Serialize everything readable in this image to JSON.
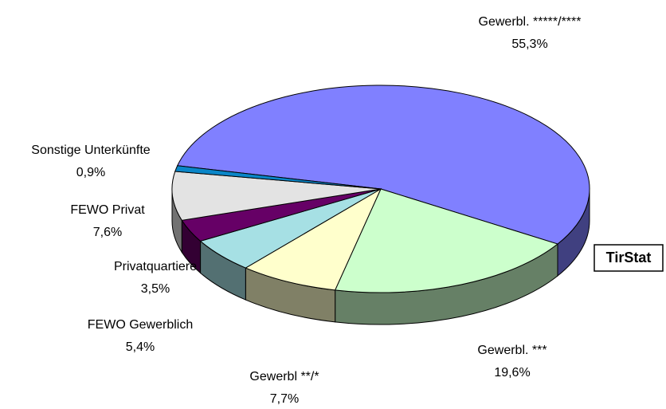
{
  "chart_data": {
    "type": "pie",
    "categories": [
      "Gewerbl. *****/****",
      "Gewerbl. ***",
      "Gewerbl **/*",
      "FEWO Gewerblich",
      "Privatquartiere",
      "FEWO Privat",
      "Sonstige Unterkünfte"
    ],
    "values": [
      55.3,
      19.6,
      7.7,
      5.4,
      3.5,
      7.6,
      0.9
    ],
    "value_labels": [
      "55,3%",
      "19,6%",
      "7,7%",
      "5,4%",
      "3,5%",
      "7,6%",
      "0,9%"
    ],
    "colors": [
      "#8080ff",
      "#ccffcc",
      "#ffffcc",
      "#a6e0e4",
      "#660066",
      "#e3e3e3",
      "#0a86c8"
    ],
    "source": "TirStat"
  }
}
